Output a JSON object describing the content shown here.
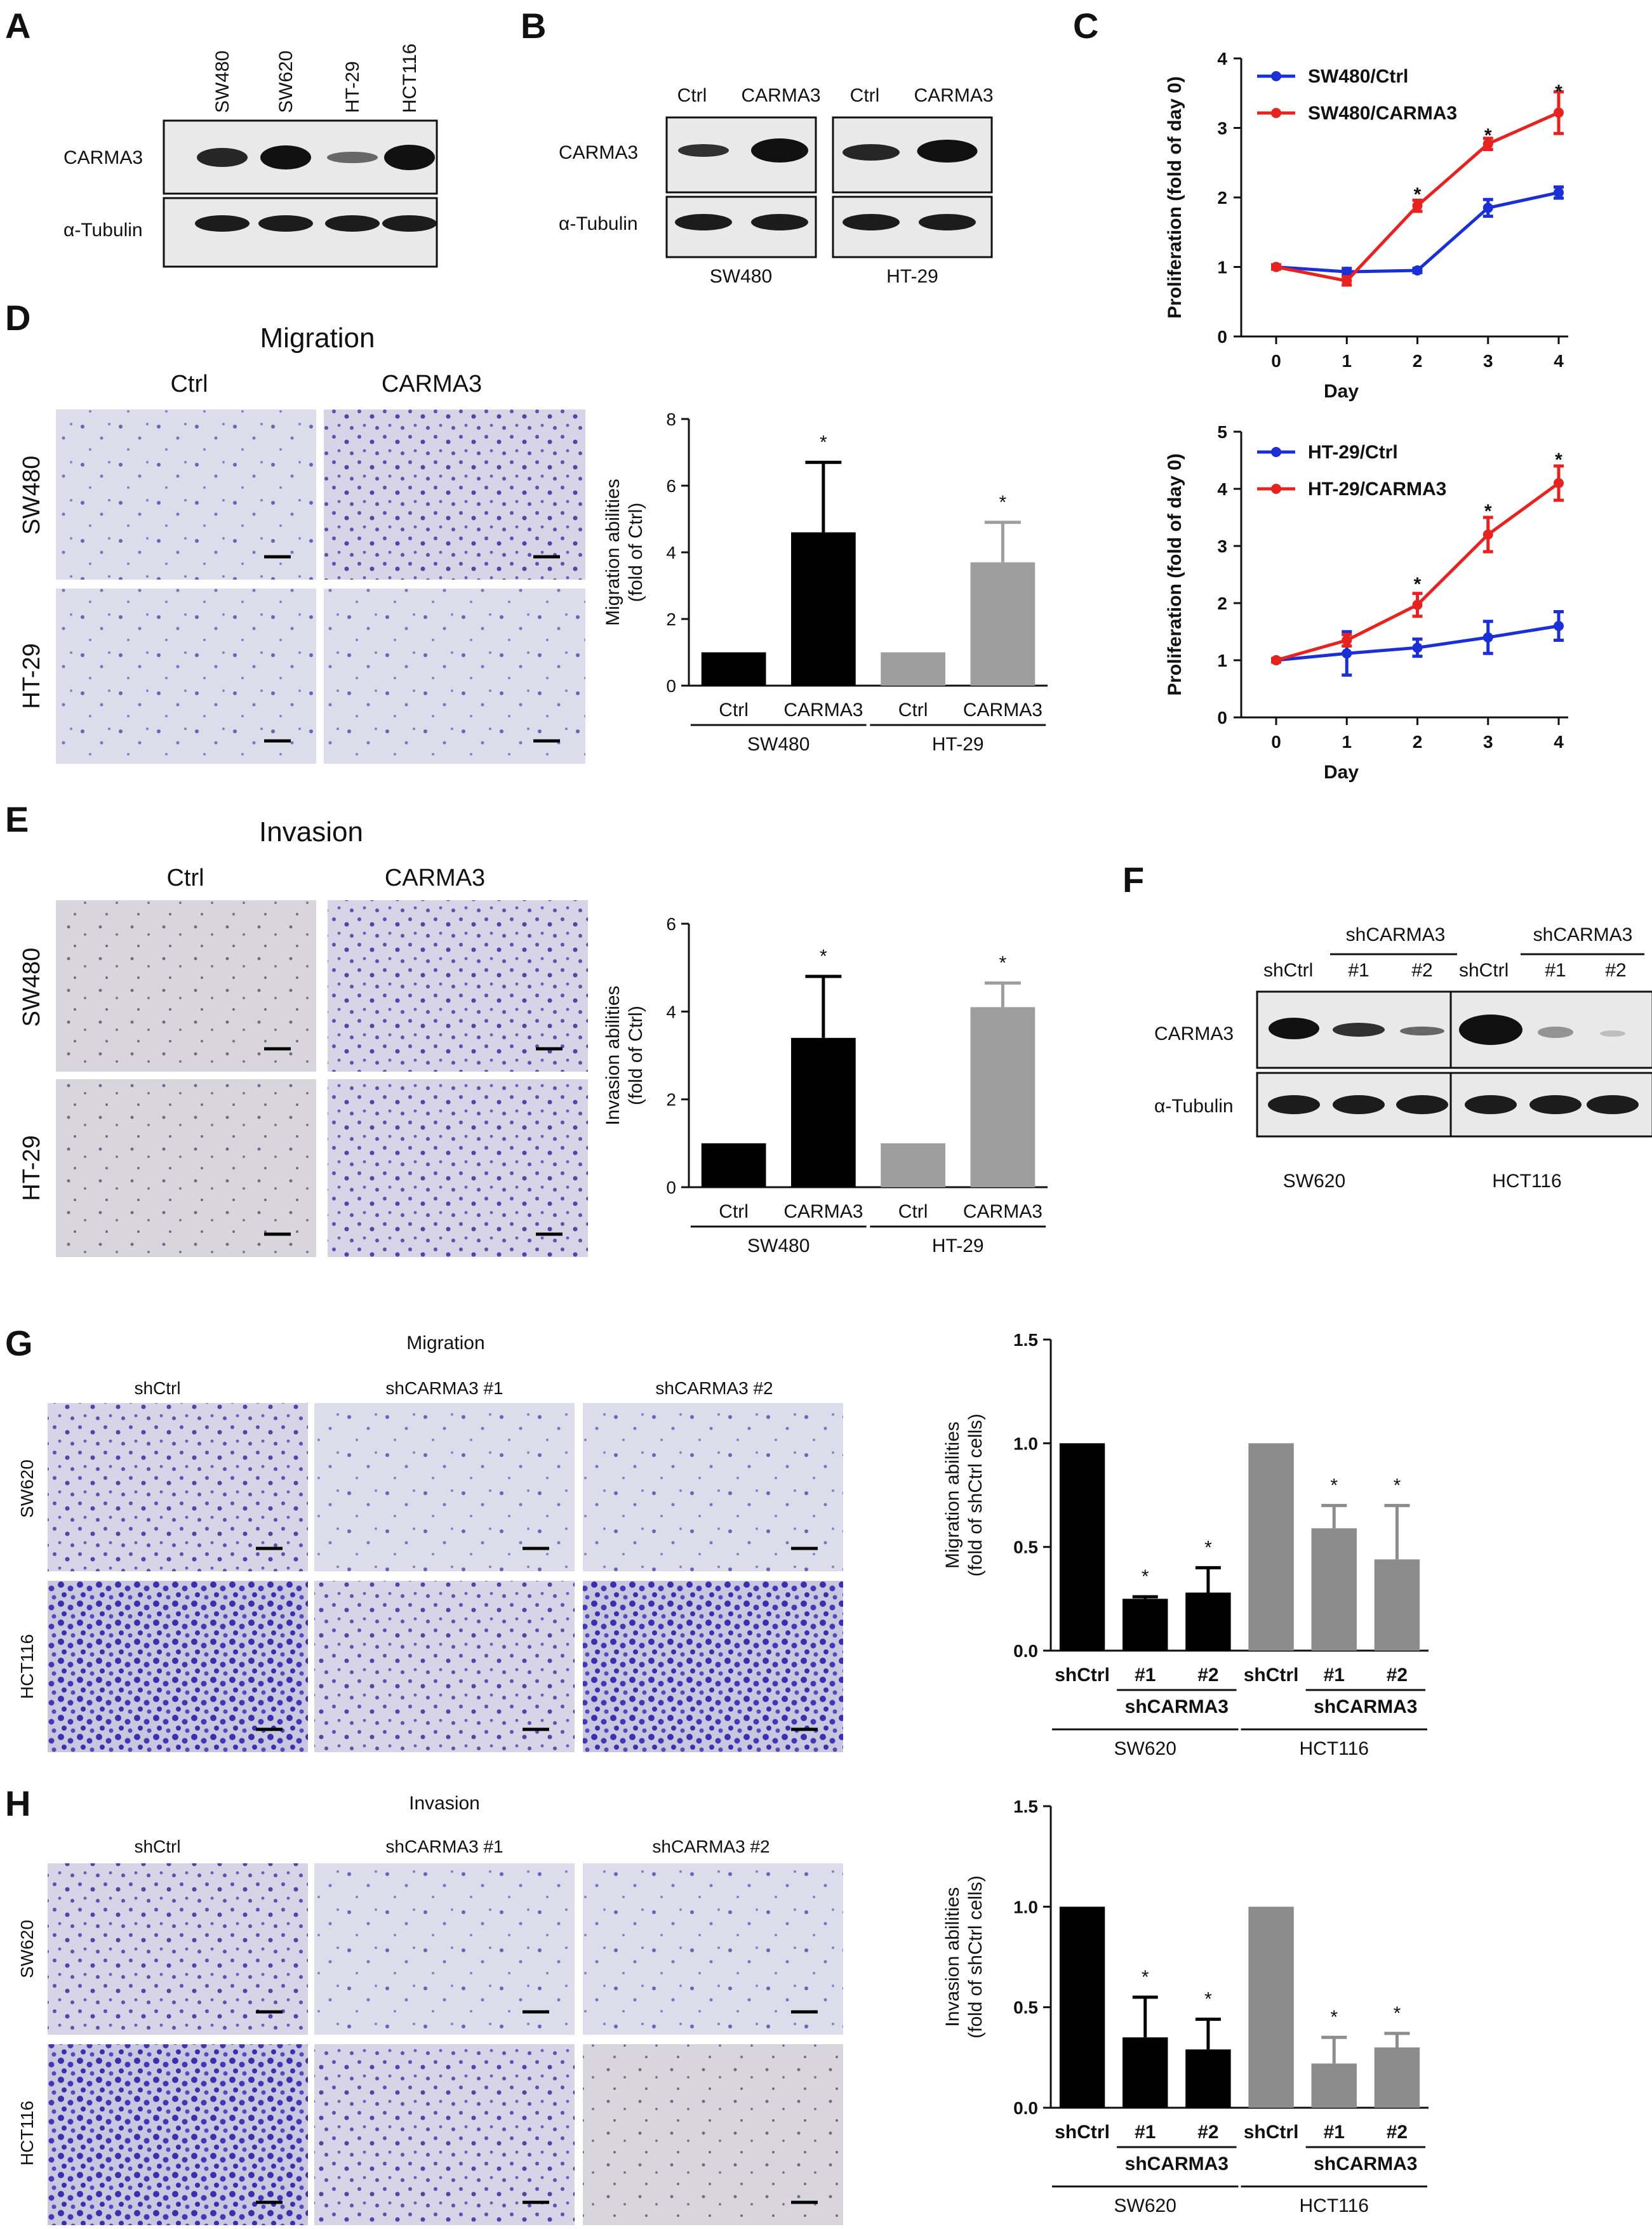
{
  "panels": {
    "A": {
      "letter": "A",
      "lanes": [
        "SW480",
        "SW620",
        "HT-29",
        "HCT116"
      ],
      "rows": [
        "CARMA3",
        "α-Tubulin"
      ]
    },
    "B": {
      "letter": "B",
      "groups": [
        {
          "name": "SW480",
          "lanes": [
            "Ctrl",
            "CARMA3"
          ]
        },
        {
          "name": "HT-29",
          "lanes": [
            "Ctrl",
            "CARMA3"
          ]
        }
      ],
      "rows": [
        "CARMA3",
        "α-Tubulin"
      ]
    },
    "C": {
      "letter": "C"
    },
    "D": {
      "letter": "D",
      "title": "Migration",
      "cols": [
        "Ctrl",
        "CARMA3"
      ],
      "rows": [
        "SW480",
        "HT-29"
      ]
    },
    "E": {
      "letter": "E",
      "title": "Invasion",
      "cols": [
        "Ctrl",
        "CARMA3"
      ],
      "rows": [
        "SW480",
        "HT-29"
      ]
    },
    "F": {
      "letter": "F",
      "groups": [
        {
          "name": "SW620",
          "bracket": "shCARMA3",
          "lanes": [
            "shCtrl",
            "#1",
            "#2"
          ]
        },
        {
          "name": "HCT116",
          "bracket": "shCARMA3",
          "lanes": [
            "shCtrl",
            "#1",
            "#2"
          ]
        }
      ],
      "rows": [
        "CARMA3",
        "α-Tubulin"
      ]
    },
    "G": {
      "letter": "G",
      "title": "Migration",
      "cols": [
        "shCtrl",
        "shCARMA3 #1",
        "shCARMA3 #2"
      ],
      "rows": [
        "SW620",
        "HCT116"
      ]
    },
    "H": {
      "letter": "H",
      "title": "Invasion",
      "cols": [
        "shCtrl",
        "shCARMA3 #1",
        "shCARMA3 #2"
      ],
      "rows": [
        "SW620",
        "HCT116"
      ]
    }
  },
  "chart_data": [
    {
      "id": "C1",
      "type": "line",
      "x": [
        0,
        1,
        2,
        3,
        4
      ],
      "xlabel": "Day",
      "ylabel": "Proliferation (fold of day 0)",
      "ylim": [
        0,
        4
      ],
      "yticks": [
        0,
        1,
        2,
        3,
        4
      ],
      "legend": "top-left",
      "series": [
        {
          "name": "SW480/Ctrl",
          "color": "#1a2fd6",
          "values": [
            1.0,
            0.93,
            0.95,
            1.85,
            2.07
          ],
          "err": [
            0.03,
            0.05,
            0.03,
            0.12,
            0.08
          ]
        },
        {
          "name": "SW480/CARMA3",
          "color": "#e8231f",
          "values": [
            1.0,
            0.8,
            1.88,
            2.77,
            3.22
          ],
          "err": [
            0.03,
            0.06,
            0.08,
            0.08,
            0.3
          ]
        }
      ],
      "sig": [
        {
          "x": 2,
          "y": 2.12
        },
        {
          "x": 3,
          "y": 2.97
        },
        {
          "x": 4,
          "y": 3.6
        }
      ]
    },
    {
      "id": "C2",
      "type": "line",
      "x": [
        0,
        1,
        2,
        3,
        4
      ],
      "xlabel": "Day",
      "ylabel": "Proliferation (fold of day 0)",
      "ylim": [
        0,
        5
      ],
      "yticks": [
        0,
        1,
        2,
        3,
        4,
        5
      ],
      "legend": "top-left",
      "series": [
        {
          "name": "HT-29/Ctrl",
          "color": "#1a2fd6",
          "values": [
            1.0,
            1.12,
            1.22,
            1.4,
            1.6
          ],
          "err": [
            0.03,
            0.38,
            0.15,
            0.28,
            0.25
          ]
        },
        {
          "name": "HT-29/CARMA3",
          "color": "#e8231f",
          "values": [
            1.0,
            1.35,
            1.97,
            3.2,
            4.1
          ],
          "err": [
            0.03,
            0.1,
            0.2,
            0.3,
            0.3
          ]
        }
      ],
      "sig": [
        {
          "x": 2,
          "y": 2.42
        },
        {
          "x": 3,
          "y": 3.7
        },
        {
          "x": 4,
          "y": 4.6
        }
      ]
    },
    {
      "id": "D",
      "type": "bar",
      "categories": [
        "Ctrl",
        "CARMA3",
        "Ctrl",
        "CARMA3"
      ],
      "colors": [
        "#000000",
        "#000000",
        "#9e9e9e",
        "#9e9e9e"
      ],
      "values": [
        1.0,
        4.6,
        1.0,
        3.7
      ],
      "err": [
        0,
        2.1,
        0,
        1.2
      ],
      "sig": [
        false,
        true,
        false,
        true
      ],
      "groups": [
        {
          "label": "SW480",
          "from": 0,
          "to": 1
        },
        {
          "label": "HT-29",
          "from": 2,
          "to": 3
        }
      ],
      "ylabel": "Migration abilities",
      "ylabel2": "(fold of Ctrl)",
      "ylim": [
        0,
        8
      ],
      "yticks": [
        0,
        2,
        4,
        6,
        8
      ]
    },
    {
      "id": "E",
      "type": "bar",
      "categories": [
        "Ctrl",
        "CARMA3",
        "Ctrl",
        "CARMA3"
      ],
      "colors": [
        "#000000",
        "#000000",
        "#9e9e9e",
        "#9e9e9e"
      ],
      "values": [
        1.0,
        3.4,
        1.0,
        4.1
      ],
      "err": [
        0,
        1.4,
        0,
        0.55
      ],
      "sig": [
        false,
        true,
        false,
        true
      ],
      "groups": [
        {
          "label": "SW480",
          "from": 0,
          "to": 1
        },
        {
          "label": "HT-29",
          "from": 2,
          "to": 3
        }
      ],
      "ylabel": "Invasion abilities",
      "ylabel2": "(fold of Ctrl)",
      "ylim": [
        0,
        6
      ],
      "yticks": [
        0,
        2,
        4,
        6
      ]
    },
    {
      "id": "G",
      "type": "bar",
      "categories": [
        "shCtrl",
        "#1",
        "#2",
        "shCtrl",
        "#1",
        "#2"
      ],
      "colors": [
        "#000000",
        "#000000",
        "#000000",
        "#8c8c8c",
        "#8c8c8c",
        "#8c8c8c"
      ],
      "values": [
        1.0,
        0.25,
        0.28,
        1.0,
        0.59,
        0.44
      ],
      "err": [
        0,
        0.01,
        0.12,
        0,
        0.11,
        0.26
      ],
      "sig": [
        false,
        true,
        true,
        false,
        true,
        true
      ],
      "subgroups": [
        {
          "label": "shCARMA3",
          "from": 1,
          "to": 2
        },
        {
          "label": "shCARMA3",
          "from": 4,
          "to": 5
        }
      ],
      "groups": [
        {
          "label": "SW620",
          "from": 0,
          "to": 2
        },
        {
          "label": "HCT116",
          "from": 3,
          "to": 5
        }
      ],
      "ylabel": "Migration abilities",
      "ylabel2": "(fold of shCtrl cells)",
      "ylim": [
        0,
        1.5
      ],
      "yticks": [
        "0.0",
        "0.5",
        "1.0",
        "1.5"
      ]
    },
    {
      "id": "H",
      "type": "bar",
      "categories": [
        "shCtrl",
        "#1",
        "#2",
        "shCtrl",
        "#1",
        "#2"
      ],
      "colors": [
        "#000000",
        "#000000",
        "#000000",
        "#8c8c8c",
        "#8c8c8c",
        "#8c8c8c"
      ],
      "values": [
        1.0,
        0.35,
        0.29,
        1.0,
        0.22,
        0.3
      ],
      "err": [
        0,
        0.2,
        0.15,
        0,
        0.13,
        0.07
      ],
      "sig": [
        false,
        true,
        true,
        false,
        true,
        true
      ],
      "subgroups": [
        {
          "label": "shCARMA3",
          "from": 1,
          "to": 2
        },
        {
          "label": "shCARMA3",
          "from": 4,
          "to": 5
        }
      ],
      "groups": [
        {
          "label": "SW620",
          "from": 0,
          "to": 2
        },
        {
          "label": "HCT116",
          "from": 3,
          "to": 5
        }
      ],
      "ylabel": "Invasion abilities",
      "ylabel2": "(fold of shCtrl cells)",
      "ylim": [
        0,
        1.5
      ],
      "yticks": [
        "0.0",
        "0.5",
        "1.0",
        "1.5"
      ]
    }
  ]
}
